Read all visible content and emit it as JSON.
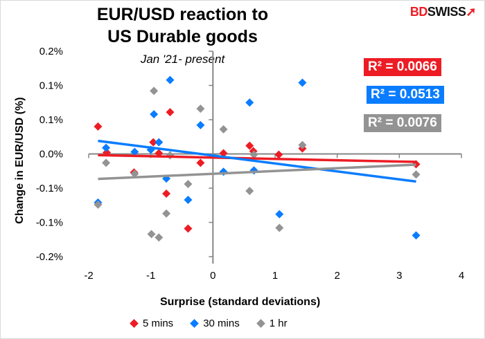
{
  "logo": {
    "text_bd": "BD",
    "text_swiss": "SWISS"
  },
  "chart_data": {
    "type": "scatter",
    "title_line1": "EUR/USD reaction to",
    "title_line2": "US Durable goods",
    "subtitle": "Jan '21- present",
    "xlabel": "Surprise (standard deviations)",
    "ylabel": "Change in EUR/USD  (%)",
    "xlim": [
      -2,
      4
    ],
    "ylim": [
      -0.15,
      0.15
    ],
    "xticks": [
      -2,
      -1,
      0,
      1,
      2,
      3,
      4
    ],
    "xtick_labels": [
      "-2",
      "-1",
      "0",
      "1",
      "2",
      "3",
      "4"
    ],
    "yticks": [
      0.15,
      0.1,
      0.05,
      0,
      -0.05,
      -0.1,
      -0.15
    ],
    "ytick_labels": [
      "0.2%",
      "0.1%",
      "0.1%",
      "0.0%",
      "-0.1%",
      "-0.1%",
      "-0.2%"
    ],
    "grid": false,
    "legend_position": "bottom",
    "series": [
      {
        "name": "5 mins",
        "color": "#ed1c24",
        "r2_label": "R² = 0.0066",
        "x": [
          -1.85,
          -1.71,
          -1.27,
          -0.96,
          -0.87,
          -0.69,
          -0.75,
          -0.4,
          -0.2,
          0.17,
          0.59,
          0.65,
          1.06,
          1.44,
          3.27
        ],
        "y": [
          0.04,
          0.002,
          -0.027,
          0.017,
          0.001,
          0.061,
          -0.058,
          -0.109,
          -0.013,
          0.001,
          0.012,
          0.004,
          -0.001,
          0.008,
          -0.015
        ]
      },
      {
        "name": "30 mins",
        "color": "#0a7cff",
        "r2_label": "R² = 0.0513",
        "x": [
          -1.85,
          -1.72,
          -1.26,
          -1.0,
          -0.95,
          -0.87,
          -0.69,
          -0.75,
          -0.4,
          -0.2,
          0.17,
          0.59,
          0.66,
          1.07,
          1.44,
          3.27
        ],
        "y": [
          -0.071,
          0.009,
          0.003,
          0.006,
          0.058,
          0.017,
          0.108,
          -0.036,
          -0.067,
          0.042,
          -0.026,
          0.075,
          -0.024,
          -0.088,
          0.104,
          -0.119
        ]
      },
      {
        "name": "1 hr",
        "color": "#939393",
        "r2_label": "R² = 0.0076",
        "x": [
          -1.85,
          -1.72,
          -1.26,
          -0.99,
          -0.95,
          -0.87,
          -0.69,
          -0.75,
          -0.4,
          -0.2,
          0.17,
          0.59,
          0.66,
          1.07,
          1.44,
          3.27
        ],
        "y": [
          -0.074,
          -0.013,
          -0.029,
          -0.117,
          0.092,
          -0.122,
          -0.002,
          -0.087,
          -0.044,
          0.066,
          0.036,
          -0.054,
          -0.001,
          -0.108,
          0.013,
          -0.03
        ]
      }
    ]
  }
}
